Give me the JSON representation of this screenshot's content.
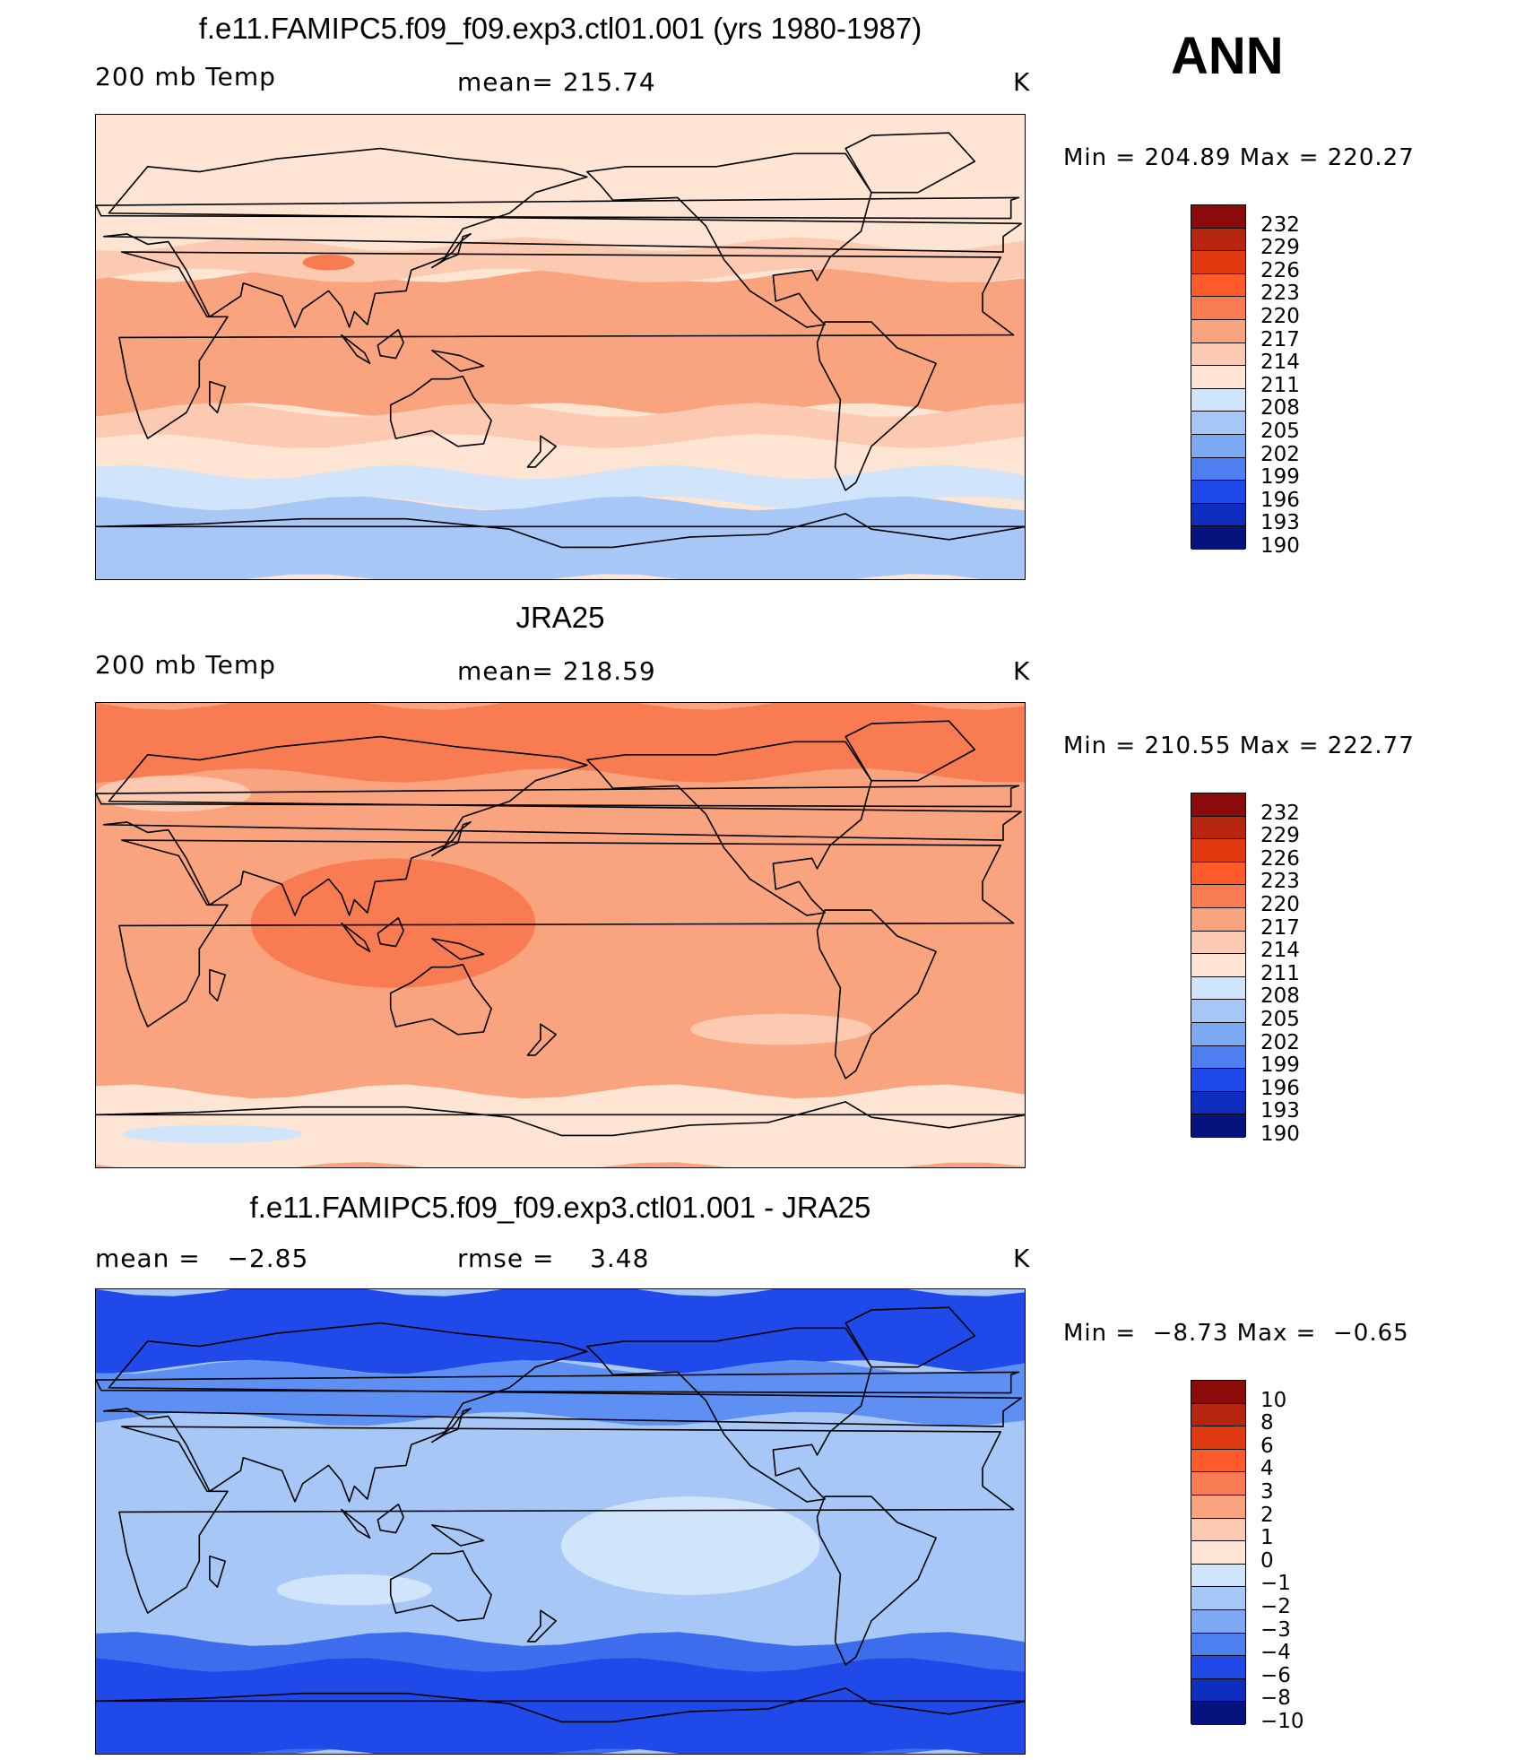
{
  "season": "ANN",
  "units": "K",
  "panels": [
    {
      "title": "f.e11.FAMIPC5.f09_f09.exp3.ctl01.001 (yrs 1980-1987)",
      "left_label": "200 mb Temp",
      "mid_label": "mean= 215.74",
      "minmax": "Min = 204.89 Max = 220.27",
      "palette": "abs",
      "levels": [
        "232",
        "229",
        "226",
        "223",
        "220",
        "217",
        "214",
        "211",
        "208",
        "205",
        "202",
        "199",
        "196",
        "193",
        "190"
      ],
      "base_fill": "#fde4d3",
      "regions": [
        {
          "fill": "#f9a47f",
          "lat_north": 28,
          "lat_south": -24
        },
        {
          "fill": "#fccab0",
          "lat_north": 40,
          "lat_south": 28
        },
        {
          "fill": "#fccab0",
          "lat_north": -24,
          "lat_south": -36
        },
        {
          "fill": "#f97b51",
          "lat_north": 36,
          "lat_south": 30,
          "lon_west": 80,
          "lon_east": 100
        },
        {
          "fill": "#d0e4fb",
          "lat_north": -48,
          "lat_south": -60
        },
        {
          "fill": "#a7c7f7",
          "lat_north": -60,
          "lat_south": -90
        }
      ]
    },
    {
      "title": "JRA25",
      "left_label": "200 mb Temp",
      "mid_label": "mean= 218.59",
      "minmax": "Min = 210.55 Max = 222.77",
      "palette": "abs",
      "levels": [
        "232",
        "229",
        "226",
        "223",
        "220",
        "217",
        "214",
        "211",
        "208",
        "205",
        "202",
        "199",
        "196",
        "193",
        "190"
      ],
      "base_fill": "#f9a47f",
      "regions": [
        {
          "fill": "#f97b51",
          "lat_north": 90,
          "lat_south": 62
        },
        {
          "fill": "#f97b51",
          "lat_north": 30,
          "lat_south": -20,
          "lon_west": 60,
          "lon_east": 170
        },
        {
          "fill": "#fccab0",
          "lat_north": 62,
          "lat_south": 48,
          "lon_west": 0,
          "lon_east": 60
        },
        {
          "fill": "#fccab0",
          "lat_north": -30,
          "lat_south": -42,
          "lon_west": 230,
          "lon_east": 300
        },
        {
          "fill": "#fde4d3",
          "lat_north": -60,
          "lat_south": -90
        },
        {
          "fill": "#d0e4fb",
          "lat_north": -73,
          "lat_south": -80,
          "lon_west": 10,
          "lon_east": 80
        }
      ]
    },
    {
      "title": "f.e11.FAMIPC5.f09_f09.exp3.ctl01.001 - JRA25",
      "left_label": "mean =   −2.85",
      "mid_label": "rmse =    3.48",
      "minmax": "Min =  −8.73 Max =  −0.65",
      "palette": "diff",
      "levels": [
        "10",
        "8",
        "6",
        "4",
        "3",
        "2",
        "1",
        "0",
        "−1",
        "−2",
        "−3",
        "−4",
        "−6",
        "−8",
        "−10"
      ],
      "base_fill": "#a7c7f7",
      "regions": [
        {
          "fill": "#1f49e8",
          "lat_north": 90,
          "lat_south": 60
        },
        {
          "fill": "#5e8ff2",
          "lat_north": 60,
          "lat_south": 40
        },
        {
          "fill": "#d0e4fb",
          "lat_north": 10,
          "lat_south": -28,
          "lon_west": 180,
          "lon_east": 280
        },
        {
          "fill": "#d0e4fb",
          "lat_north": -20,
          "lat_south": -32,
          "lon_west": 70,
          "lon_east": 130
        },
        {
          "fill": "#3d6cec",
          "lat_north": -45,
          "lat_south": -90
        },
        {
          "fill": "#1f49e8",
          "lat_north": -55,
          "lat_south": -90
        }
      ]
    }
  ],
  "palettes": {
    "abs": [
      "#8b0b0b",
      "#b6250e",
      "#e23a10",
      "#fe5a2a",
      "#f97b51",
      "#f9a47f",
      "#fccab0",
      "#fde4d3",
      "#d0e4fb",
      "#a7c7f7",
      "#7ca8f4",
      "#4d7ff0",
      "#1f49e8",
      "#0e2ec0",
      "#06137f"
    ],
    "diff": [
      "#8b0b0b",
      "#b6250e",
      "#e23a10",
      "#fe5a2a",
      "#f97b51",
      "#f9a47f",
      "#fccab0",
      "#fde4d3",
      "#d0e4fb",
      "#a7c7f7",
      "#7ca8f4",
      "#4d7ff0",
      "#1f49e8",
      "#0e2ec0",
      "#06137f"
    ]
  }
}
